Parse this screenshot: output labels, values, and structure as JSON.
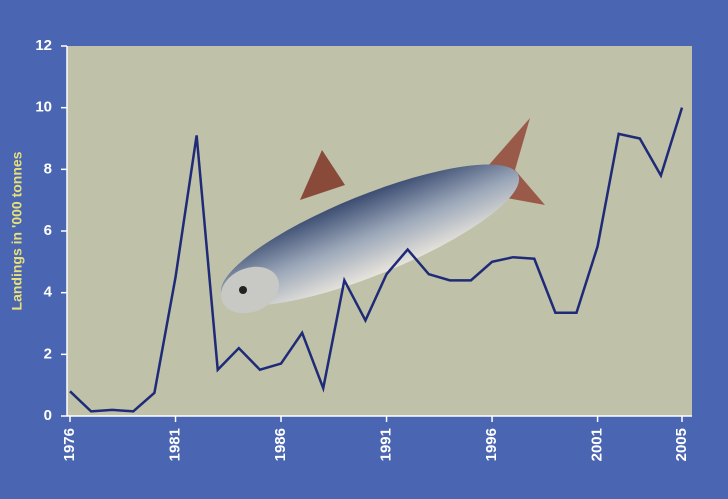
{
  "chart_data": {
    "type": "line",
    "y_label": "Landings in '000 tonnes",
    "categories": [
      "1976",
      null,
      null,
      null,
      null,
      "1981",
      null,
      null,
      null,
      null,
      "1986",
      null,
      null,
      null,
      null,
      "1991",
      null,
      null,
      null,
      null,
      "1996",
      null,
      null,
      null,
      null,
      "2001",
      null,
      null,
      null,
      "2005"
    ],
    "values": [
      0.8,
      0.15,
      0.2,
      0.15,
      0.75,
      4.5,
      9.1,
      1.5,
      2.2,
      1.5,
      1.7,
      2.7,
      0.9,
      4.4,
      3.1,
      4.6,
      5.4,
      4.6,
      4.4,
      4.4,
      5.0,
      5.15,
      5.1,
      3.35,
      3.35,
      5.5,
      9.15,
      9.0,
      7.8,
      10.0
    ],
    "color": "#1f2a78",
    "ylim": [
      0,
      12
    ],
    "yticks": [
      0,
      2,
      4,
      6,
      8,
      10,
      12
    ]
  }
}
